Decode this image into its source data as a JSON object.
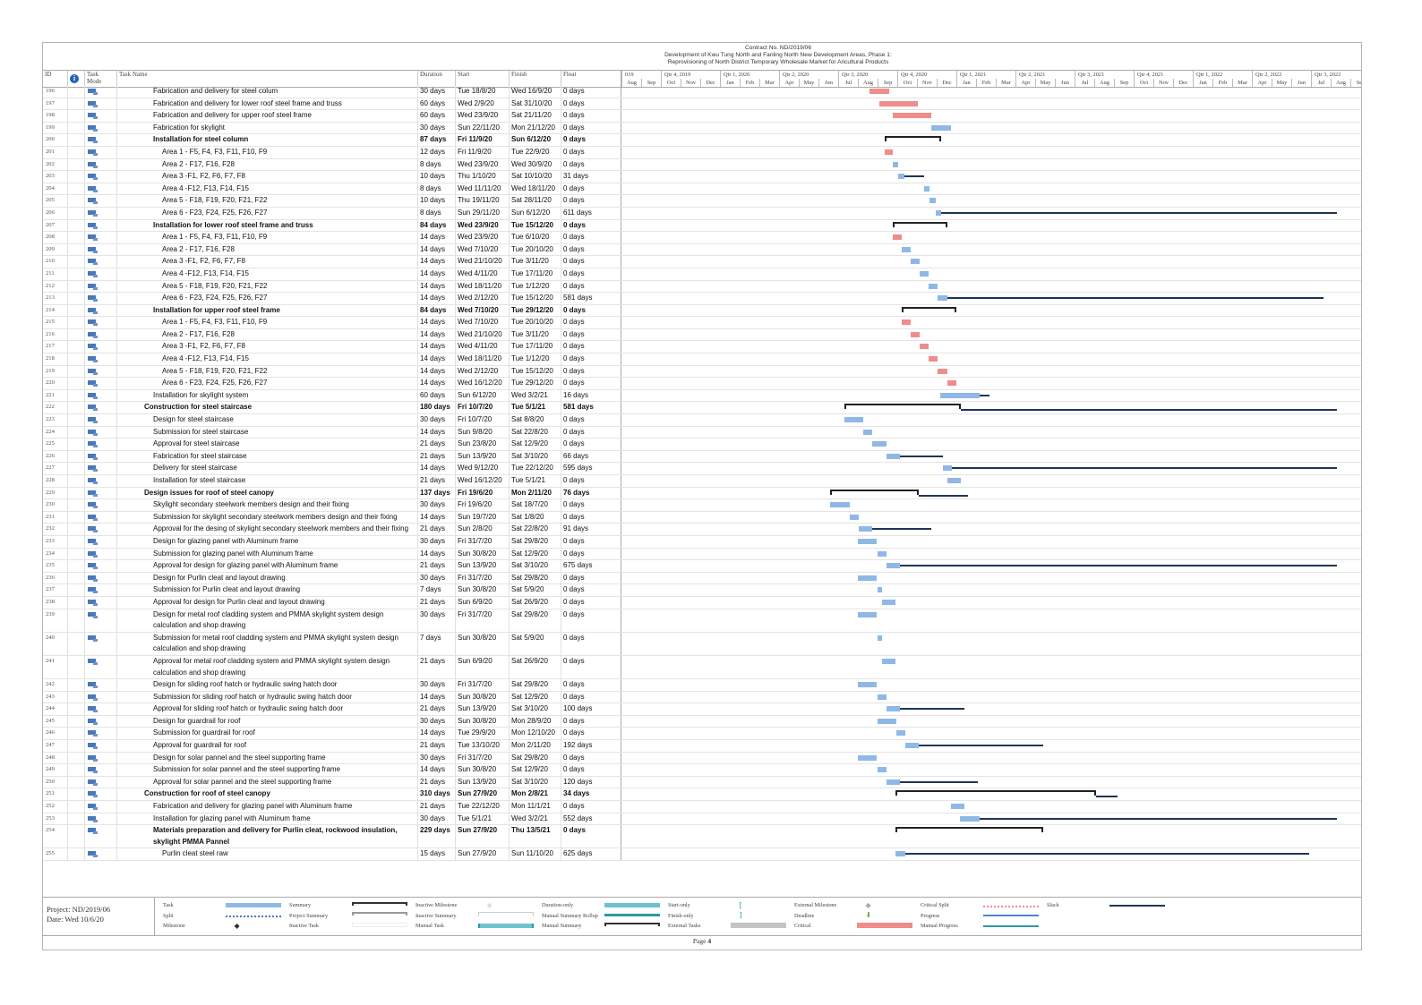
{
  "title": {
    "contract": "Contract No. ND/2019/06",
    "line2": "Development of Kwu Tung North and Fanling North New Development Areas, Phase 1:",
    "line3": "Reprovisioning of North District Temporary Wholesale Market for Aricultural Products"
  },
  "columns": {
    "id": "ID",
    "info": "i",
    "mode": "Task Mode",
    "name": "Task Name",
    "duration": "Duration",
    "start": "Start",
    "finish": "Finish",
    "float": "Float"
  },
  "timescale": {
    "start": "1/8/2019",
    "quarters": [
      {
        "label": "019",
        "months": 2
      },
      {
        "label": "Qtr 4, 2019",
        "months": 3
      },
      {
        "label": "Qtr 1, 2020",
        "months": 3
      },
      {
        "label": "Qtr 2, 2020",
        "months": 3
      },
      {
        "label": "Qtr 3, 2020",
        "months": 3
      },
      {
        "label": "Qtr 4, 2020",
        "months": 3
      },
      {
        "label": "Qtr 1, 2021",
        "months": 3
      },
      {
        "label": "Qtr 2, 2021",
        "months": 3
      },
      {
        "label": "Qtr 3, 2021",
        "months": 3
      },
      {
        "label": "Qtr 4, 2021",
        "months": 3
      },
      {
        "label": "Qtr 1, 2022",
        "months": 3
      },
      {
        "label": "Qtr 2, 2022",
        "months": 3
      },
      {
        "label": "Qtr 3, 2022",
        "months": 3
      }
    ],
    "months": [
      "Aug",
      "Sep",
      "Oct",
      "Nov",
      "Dec",
      "Jan",
      "Feb",
      "Mar",
      "Apr",
      "May",
      "Jun",
      "Jul",
      "Aug",
      "Sep",
      "Oct",
      "Nov",
      "Dec",
      "Jan",
      "Feb",
      "Mar",
      "Apr",
      "May",
      "Jun",
      "Jul",
      "Aug",
      "Sep",
      "Oct",
      "Nov",
      "Dec",
      "Jan",
      "Feb",
      "Mar",
      "Apr",
      "May",
      "Jun",
      "Jul",
      "Aug",
      "Sep"
    ]
  },
  "colors": {
    "task": "#8fb8e6",
    "critical": "#f08c8c",
    "slack": "#1e3556",
    "summary": "#222222",
    "manual": "#6cc3cc"
  },
  "tasks": [
    {
      "id": "196",
      "level": 2,
      "name": "Fabrication and delivery for steel colum",
      "duration": "30 days",
      "start": "Tue 18/8/20",
      "finish": "Wed 16/9/20",
      "float": "0 days",
      "critical": true
    },
    {
      "id": "197",
      "level": 2,
      "name": "Fabrication and delivery for lower roof steel frame and truss",
      "duration": "60 days",
      "start": "Wed 2/9/20",
      "finish": "Sat 31/10/20",
      "float": "0 days",
      "critical": true
    },
    {
      "id": "198",
      "level": 2,
      "name": "Fabrication and delivery for upper roof steel frame",
      "duration": "60 days",
      "start": "Wed 23/9/20",
      "finish": "Sat 21/11/20",
      "float": "0 days",
      "critical": true
    },
    {
      "id": "199",
      "level": 2,
      "name": "Fabrication for skylight",
      "duration": "30 days",
      "start": "Sun 22/11/20",
      "finish": "Mon 21/12/20",
      "float": "0 days"
    },
    {
      "id": "200",
      "level": 2,
      "summary": true,
      "name": "Installation for steel column",
      "duration": "87 days",
      "start": "Fri 11/9/20",
      "finish": "Sun 6/12/20",
      "float": "0 days"
    },
    {
      "id": "201",
      "level": 3,
      "name": "Area 1 - F5, F4, F3, F11, F10, F9",
      "duration": "12 days",
      "start": "Fri 11/9/20",
      "finish": "Tue 22/9/20",
      "float": "0 days",
      "critical": true
    },
    {
      "id": "202",
      "level": 3,
      "name": "Area 2 - F17, F16, F28",
      "duration": "8 days",
      "start": "Wed 23/9/20",
      "finish": "Wed 30/9/20",
      "float": "0 days"
    },
    {
      "id": "203",
      "level": 3,
      "name": "Area 3 -F1, F2, F6, F7, F8",
      "duration": "10 days",
      "start": "Thu 1/10/20",
      "finish": "Sat 10/10/20",
      "float": "31 days"
    },
    {
      "id": "204",
      "level": 3,
      "name": "Area 4 -F12, F13, F14, F15",
      "duration": "8 days",
      "start": "Wed 11/11/20",
      "finish": "Wed 18/11/20",
      "float": "0 days"
    },
    {
      "id": "205",
      "level": 3,
      "name": "Area 5 - F18, F19, F20, F21, F22",
      "duration": "10 days",
      "start": "Thu 19/11/20",
      "finish": "Sat 28/11/20",
      "float": "0 days"
    },
    {
      "id": "206",
      "level": 3,
      "name": "Area 6 - F23, F24, F25, F26, F27",
      "duration": "8 days",
      "start": "Sun 29/11/20",
      "finish": "Sun 6/12/20",
      "float": "611 days"
    },
    {
      "id": "207",
      "level": 2,
      "summary": true,
      "name": "Installation for lower roof steel frame and truss",
      "duration": "84 days",
      "start": "Wed 23/9/20",
      "finish": "Tue 15/12/20",
      "float": "0 days"
    },
    {
      "id": "208",
      "level": 3,
      "name": "Area 1 - F5, F4, F3, F11, F10, F9",
      "duration": "14 days",
      "start": "Wed 23/9/20",
      "finish": "Tue 6/10/20",
      "float": "0 days",
      "critical": true
    },
    {
      "id": "209",
      "level": 3,
      "name": "Area 2 - F17, F16, F28",
      "duration": "14 days",
      "start": "Wed 7/10/20",
      "finish": "Tue 20/10/20",
      "float": "0 days"
    },
    {
      "id": "210",
      "level": 3,
      "name": "Area 3 -F1, F2, F6, F7, F8",
      "duration": "14 days",
      "start": "Wed 21/10/20",
      "finish": "Tue 3/11/20",
      "float": "0 days"
    },
    {
      "id": "211",
      "level": 3,
      "name": "Area 4 -F12, F13, F14, F15",
      "duration": "14 days",
      "start": "Wed 4/11/20",
      "finish": "Tue 17/11/20",
      "float": "0 days"
    },
    {
      "id": "212",
      "level": 3,
      "name": "Area 5 - F18, F19, F20, F21, F22",
      "duration": "14 days",
      "start": "Wed 18/11/20",
      "finish": "Tue 1/12/20",
      "float": "0 days"
    },
    {
      "id": "213",
      "level": 3,
      "name": "Area 6 - F23, F24, F25, F26, F27",
      "duration": "14 days",
      "start": "Wed 2/12/20",
      "finish": "Tue 15/12/20",
      "float": "581 days"
    },
    {
      "id": "214",
      "level": 2,
      "summary": true,
      "name": "Installation for upper roof steel frame",
      "duration": "84 days",
      "start": "Wed 7/10/20",
      "finish": "Tue 29/12/20",
      "float": "0 days"
    },
    {
      "id": "215",
      "level": 3,
      "name": "Area 1 - F5, F4, F3, F11, F10, F9",
      "duration": "14 days",
      "start": "Wed 7/10/20",
      "finish": "Tue 20/10/20",
      "float": "0 days",
      "critical": true
    },
    {
      "id": "216",
      "level": 3,
      "name": "Area 2 - F17, F16, F28",
      "duration": "14 days",
      "start": "Wed 21/10/20",
      "finish": "Tue 3/11/20",
      "float": "0 days",
      "critical": true
    },
    {
      "id": "217",
      "level": 3,
      "name": "Area 3 -F1, F2, F6, F7, F8",
      "duration": "14 days",
      "start": "Wed 4/11/20",
      "finish": "Tue 17/11/20",
      "float": "0 days",
      "critical": true
    },
    {
      "id": "218",
      "level": 3,
      "name": "Area 4 -F12, F13, F14, F15",
      "duration": "14 days",
      "start": "Wed 18/11/20",
      "finish": "Tue 1/12/20",
      "float": "0 days",
      "critical": true
    },
    {
      "id": "219",
      "level": 3,
      "name": "Area 5 - F18, F19, F20, F21, F22",
      "duration": "14 days",
      "start": "Wed 2/12/20",
      "finish": "Tue 15/12/20",
      "float": "0 days",
      "critical": true
    },
    {
      "id": "220",
      "level": 3,
      "name": "Area 6 - F23, F24, F25, F26, F27",
      "duration": "14 days",
      "start": "Wed 16/12/20",
      "finish": "Tue 29/12/20",
      "float": "0 days",
      "critical": true
    },
    {
      "id": "221",
      "level": 2,
      "name": "Installation for skylight system",
      "duration": "60 days",
      "start": "Sun 6/12/20",
      "finish": "Wed 3/2/21",
      "float": "16 days"
    },
    {
      "id": "222",
      "level": 1,
      "summary": true,
      "name": "Construction for steel staircase",
      "duration": "180 days",
      "start": "Fri 10/7/20",
      "finish": "Tue 5/1/21",
      "float": "581 days"
    },
    {
      "id": "223",
      "level": 2,
      "name": "Design for steel staircase",
      "duration": "30 days",
      "start": "Fri 10/7/20",
      "finish": "Sat 8/8/20",
      "float": "0 days"
    },
    {
      "id": "224",
      "level": 2,
      "name": "Submission for steel staircase",
      "duration": "14 days",
      "start": "Sun 9/8/20",
      "finish": "Sat 22/8/20",
      "float": "0 days"
    },
    {
      "id": "225",
      "level": 2,
      "name": "Approval for steel staircase",
      "duration": "21 days",
      "start": "Sun 23/8/20",
      "finish": "Sat 12/9/20",
      "float": "0 days"
    },
    {
      "id": "226",
      "level": 2,
      "name": "Fabrication for steel staircase",
      "duration": "21 days",
      "start": "Sun 13/9/20",
      "finish": "Sat 3/10/20",
      "float": "66 days"
    },
    {
      "id": "227",
      "level": 2,
      "name": "Delivery for steel staircase",
      "duration": "14 days",
      "start": "Wed 9/12/20",
      "finish": "Tue 22/12/20",
      "float": "595 days"
    },
    {
      "id": "228",
      "level": 2,
      "name": "Installation for steel staircase",
      "duration": "21 days",
      "start": "Wed 16/12/20",
      "finish": "Tue 5/1/21",
      "float": "0 days"
    },
    {
      "id": "229",
      "level": 1,
      "summary": true,
      "name": "Design issues for roof of steel canopy",
      "duration": "137 days",
      "start": "Fri 19/6/20",
      "finish": "Mon 2/11/20",
      "float": "76 days"
    },
    {
      "id": "230",
      "level": 2,
      "name": "Skylight secondary steelwork members design and their fixing",
      "duration": "30 days",
      "start": "Fri 19/6/20",
      "finish": "Sat 18/7/20",
      "float": "0 days"
    },
    {
      "id": "231",
      "level": 2,
      "name": "Submission for skylight secondary steelwork members design and their fixing",
      "duration": "14 days",
      "start": "Sun 19/7/20",
      "finish": "Sat 1/8/20",
      "float": "0 days"
    },
    {
      "id": "232",
      "level": 2,
      "name": "Approval for the desing of skylight secondary steelwork members and their fixing",
      "duration": "21 days",
      "start": "Sun 2/8/20",
      "finish": "Sat 22/8/20",
      "float": "91 days"
    },
    {
      "id": "233",
      "level": 2,
      "name": "Design for glazing panel with Aluminum frame",
      "duration": "30 days",
      "start": "Fri 31/7/20",
      "finish": "Sat 29/8/20",
      "float": "0 days"
    },
    {
      "id": "234",
      "level": 2,
      "name": "Submission for glazing panel with Aluminum frame",
      "duration": "14 days",
      "start": "Sun 30/8/20",
      "finish": "Sat 12/9/20",
      "float": "0 days"
    },
    {
      "id": "235",
      "level": 2,
      "name": "Approval for design for glazing panel with Aluminum frame",
      "duration": "21 days",
      "start": "Sun 13/9/20",
      "finish": "Sat 3/10/20",
      "float": "675 days"
    },
    {
      "id": "236",
      "level": 2,
      "name": "Design for Purlin cleat and layout drawing",
      "duration": "30 days",
      "start": "Fri 31/7/20",
      "finish": "Sat 29/8/20",
      "float": "0 days"
    },
    {
      "id": "237",
      "level": 2,
      "name": "Submission for Purlin cleat and layout drawing",
      "duration": "7 days",
      "start": "Sun 30/8/20",
      "finish": "Sat 5/9/20",
      "float": "0 days"
    },
    {
      "id": "238",
      "level": 2,
      "name": "Approval for design for Purlin cleat and layout drawing",
      "duration": "21 days",
      "start": "Sun 6/9/20",
      "finish": "Sat 26/9/20",
      "float": "0 days"
    },
    {
      "id": "239",
      "level": 2,
      "name": "Design for metal roof cladding system and PMMA skylight system design calculation and shop drawing",
      "duration": "30 days",
      "start": "Fri 31/7/20",
      "finish": "Sat 29/8/20",
      "float": "0 days"
    },
    {
      "id": "240",
      "level": 2,
      "name": "Submission for metal roof cladding system and PMMA skylight system design calculation and shop drawing",
      "duration": "7 days",
      "start": "Sun 30/8/20",
      "finish": "Sat 5/9/20",
      "float": "0 days"
    },
    {
      "id": "241",
      "level": 2,
      "name": "Approval for metal roof cladding system and PMMA skylight system design calculation and shop drawing",
      "duration": "21 days",
      "start": "Sun 6/9/20",
      "finish": "Sat 26/9/20",
      "float": "0 days"
    },
    {
      "id": "242",
      "level": 2,
      "name": "Design for sliding roof hatch or hydraulic swing hatch door",
      "duration": "30 days",
      "start": "Fri 31/7/20",
      "finish": "Sat 29/8/20",
      "float": "0 days"
    },
    {
      "id": "243",
      "level": 2,
      "name": "Submission for sliding roof hatch or hydraulic swing hatch door",
      "duration": "14 days",
      "start": "Sun 30/8/20",
      "finish": "Sat 12/9/20",
      "float": "0 days"
    },
    {
      "id": "244",
      "level": 2,
      "name": "Approval for sliding roof hatch or hydraulic swing hatch door",
      "duration": "21 days",
      "start": "Sun 13/9/20",
      "finish": "Sat 3/10/20",
      "float": "100 days"
    },
    {
      "id": "245",
      "level": 2,
      "name": "Design for guardrail for roof",
      "duration": "30 days",
      "start": "Sun 30/8/20",
      "finish": "Mon 28/9/20",
      "float": "0 days"
    },
    {
      "id": "246",
      "level": 2,
      "name": "Submission for guardrail for roof",
      "duration": "14 days",
      "start": "Tue 29/9/20",
      "finish": "Mon 12/10/20",
      "float": "0 days"
    },
    {
      "id": "247",
      "level": 2,
      "name": "Approval for guardrail for roof",
      "duration": "21 days",
      "start": "Tue 13/10/20",
      "finish": "Mon 2/11/20",
      "float": "192 days"
    },
    {
      "id": "248",
      "level": 2,
      "name": "Design for solar pannel and the steel supporting frame",
      "duration": "30 days",
      "start": "Fri 31/7/20",
      "finish": "Sat 29/8/20",
      "float": "0 days"
    },
    {
      "id": "249",
      "level": 2,
      "name": "Submission for solar pannel and the steel supporting frame",
      "duration": "14 days",
      "start": "Sun 30/8/20",
      "finish": "Sat 12/9/20",
      "float": "0 days"
    },
    {
      "id": "250",
      "level": 2,
      "name": "Approval for solar pannel and the steel supporting frame",
      "duration": "21 days",
      "start": "Sun 13/9/20",
      "finish": "Sat 3/10/20",
      "float": "120 days"
    },
    {
      "id": "251",
      "level": 1,
      "summary": true,
      "name": "Construction for roof of steel canopy",
      "duration": "310 days",
      "start": "Sun 27/9/20",
      "finish": "Mon 2/8/21",
      "float": "34 days"
    },
    {
      "id": "252",
      "level": 2,
      "name": "Fabrication and delivery for glazing panel with Aluminum frame",
      "duration": "21 days",
      "start": "Tue 22/12/20",
      "finish": "Mon 11/1/21",
      "float": "0 days"
    },
    {
      "id": "253",
      "level": 2,
      "name": "Installation for glazing panel with Aluminum frame",
      "duration": "30 days",
      "start": "Tue 5/1/21",
      "finish": "Wed 3/2/21",
      "float": "552 days"
    },
    {
      "id": "254",
      "level": 2,
      "summary": true,
      "name": "Materials preparation and delivery for Purlin cleat, rockwood insulation, skylight PMMA Pannel",
      "duration": "229 days",
      "start": "Sun 27/9/20",
      "finish": "Thu 13/5/21",
      "float": "0 days"
    },
    {
      "id": "255",
      "level": 3,
      "name": "Purlin cleat steel raw",
      "duration": "15 days",
      "start": "Sun 27/9/20",
      "finish": "Sun 11/10/20",
      "float": "625 days"
    }
  ],
  "footer": {
    "project": "Project: ND/2019/06",
    "date": "Date: Wed 10/6/20",
    "page_label": "Page",
    "page_number": "4"
  },
  "legend": [
    {
      "label": "Task",
      "swatch": "task"
    },
    {
      "label": "Summary",
      "swatch": "summary"
    },
    {
      "label": "Inactive Milestone",
      "swatch": "inactive-milestone"
    },
    {
      "label": "Duration-only",
      "swatch": "duration-only"
    },
    {
      "label": "Start-only",
      "swatch": "start-only"
    },
    {
      "label": "External Milestone",
      "swatch": "external-milestone"
    },
    {
      "label": "Critical Split",
      "swatch": "critical-split"
    },
    {
      "label": "Slack",
      "swatch": "slack"
    },
    {
      "label": "Split",
      "swatch": "split"
    },
    {
      "label": "Project Summary",
      "swatch": "project-summary"
    },
    {
      "label": "Inactive Summary",
      "swatch": "inactive-summary"
    },
    {
      "label": "Manual Summary Rollup",
      "swatch": "manual-summary-rollup"
    },
    {
      "label": "Finish-only",
      "swatch": "finish-only"
    },
    {
      "label": "Deadline",
      "swatch": "deadline"
    },
    {
      "label": "Progress",
      "swatch": "progress"
    },
    {
      "label": "",
      "swatch": "none"
    },
    {
      "label": "Milestone",
      "swatch": "milestone"
    },
    {
      "label": "Inactive Task",
      "swatch": "inactive-task"
    },
    {
      "label": "Manual Task",
      "swatch": "manual-task"
    },
    {
      "label": "Manual Summary",
      "swatch": "manual-summary"
    },
    {
      "label": "External Tasks",
      "swatch": "external-tasks"
    },
    {
      "label": "Critical",
      "swatch": "critical"
    },
    {
      "label": "Manual Progress",
      "swatch": "manual-progress"
    }
  ]
}
